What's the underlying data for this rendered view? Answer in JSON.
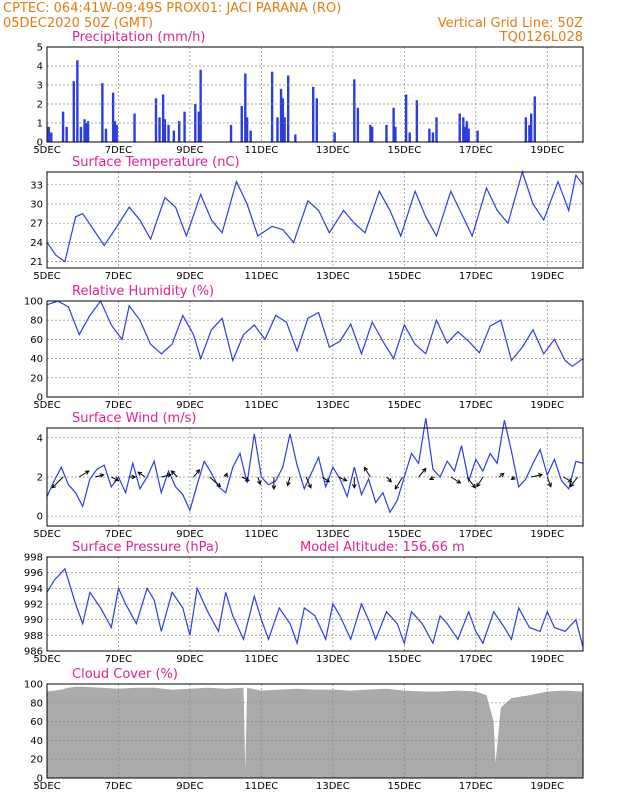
{
  "header": {
    "line1_left": "CPTEC:    064:41W-09:49S    PROX01: JACI PARANA (RO)",
    "line2_left": "05DEC2020 50Z (GMT)",
    "line2_right": "Vertical Grid Line: 50Z",
    "line3_right": "TQ0126L028"
  },
  "colors": {
    "header": "#e87b10",
    "title": "#e0209a",
    "series": "#2a3de0",
    "cloud": "#aaaaaa",
    "grid": "#888888"
  },
  "x_axis": {
    "domain_days": [
      5,
      20
    ],
    "tick_days": [
      5,
      7,
      9,
      11,
      13,
      15,
      17,
      19
    ],
    "tick_labels": [
      "5DEC",
      "7DEC",
      "9DEC",
      "11DEC",
      "13DEC",
      "15DEC",
      "17DEC",
      "19DEC"
    ]
  },
  "chart_data": [
    {
      "type": "bar",
      "title": "Precipitation (mm/h)",
      "ylim": [
        0,
        5
      ],
      "yticks": [
        0,
        1,
        2,
        3,
        4,
        5
      ],
      "series": [
        {
          "x": [
            5.05,
            5.12,
            5.45,
            5.55,
            5.75,
            5.85,
            5.95,
            6.05,
            6.1,
            6.15,
            6.55,
            6.65,
            6.85,
            6.9,
            6.95,
            7.45,
            8.05,
            8.15,
            8.25,
            8.3,
            8.4,
            8.55,
            8.7,
            8.85,
            9.15,
            9.25,
            9.3,
            10.15,
            10.45,
            10.55,
            10.6,
            10.7,
            11.3,
            11.45,
            11.55,
            11.6,
            11.65,
            11.75,
            11.95,
            12.45,
            12.55,
            13.05,
            13.6,
            13.7,
            14.05,
            14.1,
            14.5,
            14.7,
            14.75,
            15.05,
            15.15,
            15.35,
            15.7,
            15.8,
            15.9,
            16.55,
            16.65,
            16.7,
            16.75,
            16.8,
            17.05,
            18.4,
            18.5,
            18.55,
            18.65
          ],
          "values": [
            0.8,
            0.5,
            1.6,
            0.8,
            3.2,
            4.3,
            0.8,
            1.2,
            1.0,
            1.1,
            3.1,
            0.7,
            2.6,
            1.1,
            0.9,
            1.5,
            2.3,
            1.3,
            2.5,
            1.2,
            0.9,
            0.6,
            1.1,
            1.6,
            2.0,
            1.6,
            3.8,
            0.9,
            1.9,
            3.6,
            1.3,
            0.6,
            3.7,
            1.3,
            2.8,
            2.3,
            1.3,
            3.5,
            0.4,
            2.9,
            2.3,
            0.5,
            3.3,
            1.8,
            0.9,
            0.8,
            0.9,
            1.8,
            0.8,
            2.5,
            0.5,
            2.2,
            0.7,
            0.5,
            1.3,
            1.5,
            1.3,
            0.8,
            1.1,
            0.7,
            0.6,
            1.3,
            0.9,
            1.5,
            2.4
          ]
        }
      ]
    },
    {
      "type": "line",
      "title": "Surface Temperature (nC)",
      "ylim": [
        20,
        35
      ],
      "yticks": [
        21,
        24,
        27,
        30,
        33
      ],
      "series": [
        {
          "x": [
            5.0,
            5.25,
            5.5,
            5.8,
            6.0,
            6.3,
            6.6,
            6.9,
            7.3,
            7.6,
            7.9,
            8.3,
            8.6,
            8.9,
            9.3,
            9.6,
            9.9,
            10.3,
            10.6,
            10.9,
            11.3,
            11.6,
            11.9,
            12.3,
            12.6,
            12.9,
            13.3,
            13.6,
            13.9,
            14.3,
            14.6,
            14.9,
            15.3,
            15.6,
            15.9,
            16.3,
            16.6,
            16.9,
            17.3,
            17.6,
            17.9,
            18.3,
            18.6,
            18.9,
            19.3,
            19.6,
            19.8,
            20.0
          ],
          "values": [
            24.0,
            22.0,
            21.0,
            28.0,
            28.5,
            26.0,
            23.5,
            26.0,
            29.5,
            27.5,
            24.5,
            31.0,
            29.5,
            25.0,
            31.5,
            27.5,
            25.5,
            33.5,
            30.0,
            25.0,
            26.5,
            26.0,
            24.0,
            30.5,
            29.0,
            25.5,
            29.0,
            27.0,
            25.5,
            32.0,
            29.0,
            25.0,
            32.0,
            28.0,
            25.0,
            32.0,
            28.5,
            25.0,
            32.5,
            29.0,
            27.0,
            35.0,
            30.0,
            27.5,
            33.5,
            29.0,
            34.5,
            33.0
          ]
        }
      ]
    },
    {
      "type": "line",
      "title": "Relative Humidity (%)",
      "ylim": [
        0,
        100
      ],
      "yticks": [
        0,
        20,
        40,
        60,
        80,
        100
      ],
      "series": [
        {
          "x": [
            5.0,
            5.3,
            5.6,
            5.9,
            6.2,
            6.5,
            6.8,
            7.1,
            7.3,
            7.6,
            7.9,
            8.2,
            8.5,
            8.8,
            9.1,
            9.3,
            9.6,
            9.9,
            10.2,
            10.5,
            10.8,
            11.1,
            11.4,
            11.7,
            12.0,
            12.3,
            12.6,
            12.9,
            13.2,
            13.5,
            13.8,
            14.1,
            14.4,
            14.7,
            15.0,
            15.3,
            15.6,
            15.9,
            16.2,
            16.5,
            16.8,
            17.1,
            17.4,
            17.7,
            18.0,
            18.3,
            18.6,
            18.9,
            19.2,
            19.5,
            19.7,
            20.0
          ],
          "values": [
            96,
            100,
            94,
            65,
            85,
            100,
            75,
            60,
            95,
            80,
            55,
            45,
            55,
            85,
            65,
            40,
            70,
            82,
            38,
            65,
            75,
            60,
            85,
            78,
            48,
            82,
            88,
            52,
            58,
            76,
            45,
            78,
            58,
            40,
            75,
            55,
            45,
            80,
            56,
            68,
            58,
            46,
            74,
            80,
            38,
            52,
            70,
            45,
            60,
            38,
            32,
            40
          ]
        }
      ]
    },
    {
      "type": "line",
      "title": "Surface Wind (m/s)",
      "ylim": [
        -0.5,
        4.5
      ],
      "yticks": [
        0,
        2,
        4
      ],
      "series": [
        {
          "x": [
            5.0,
            5.2,
            5.4,
            5.6,
            5.8,
            6.0,
            6.2,
            6.4,
            6.6,
            6.8,
            7.0,
            7.2,
            7.4,
            7.6,
            7.8,
            8.0,
            8.2,
            8.4,
            8.6,
            8.8,
            9.0,
            9.2,
            9.4,
            9.6,
            9.8,
            10.0,
            10.2,
            10.4,
            10.6,
            10.8,
            11.0,
            11.2,
            11.4,
            11.6,
            11.8,
            12.0,
            12.2,
            12.4,
            12.6,
            12.8,
            13.0,
            13.2,
            13.4,
            13.6,
            13.8,
            14.0,
            14.2,
            14.4,
            14.6,
            14.8,
            15.0,
            15.2,
            15.4,
            15.6,
            15.8,
            16.0,
            16.2,
            16.4,
            16.6,
            16.8,
            17.0,
            17.2,
            17.4,
            17.6,
            17.8,
            18.0,
            18.2,
            18.4,
            18.6,
            18.8,
            19.0,
            19.2,
            19.4,
            19.6,
            19.8,
            20.0
          ],
          "values": [
            1.0,
            1.8,
            2.5,
            1.6,
            1.2,
            0.5,
            1.9,
            2.4,
            2.6,
            1.5,
            2.0,
            1.2,
            2.7,
            1.4,
            2.0,
            2.8,
            1.2,
            2.3,
            1.5,
            1.1,
            0.3,
            1.6,
            2.8,
            2.2,
            1.5,
            1.2,
            2.5,
            3.2,
            1.7,
            4.2,
            2.0,
            1.6,
            1.8,
            2.5,
            4.2,
            2.6,
            1.4,
            2.2,
            3.0,
            1.5,
            2.5,
            1.9,
            1.0,
            2.5,
            1.1,
            1.9,
            0.7,
            1.2,
            0.2,
            0.8,
            2.0,
            3.2,
            2.7,
            5.0,
            2.4,
            2.0,
            2.8,
            2.3,
            3.6,
            1.8,
            2.9,
            2.3,
            3.2,
            2.7,
            4.9,
            3.3,
            1.5,
            1.9,
            2.7,
            3.4,
            2.1,
            2.9,
            1.8,
            1.4,
            2.8,
            2.7
          ]
        }
      ],
      "vectors": {
        "x": [
          5.45,
          5.9,
          6.35,
          6.8,
          7.3,
          7.75,
          8.2,
          8.65,
          9.1,
          9.55,
          10.0,
          10.45,
          10.9,
          11.35,
          11.8,
          12.25,
          12.7,
          13.15,
          13.6,
          14.05,
          14.5,
          14.95,
          15.4,
          15.85,
          16.3,
          16.75,
          17.2,
          17.65,
          18.1,
          18.55,
          19.0,
          19.45,
          19.85
        ],
        "u": [
          -0.9,
          0.8,
          0.7,
          0.6,
          0.5,
          -0.6,
          0.8,
          -0.5,
          0.5,
          0.9,
          0.1,
          0.6,
          0.2,
          0.0,
          -0.2,
          0.4,
          0.6,
          0.7,
          0.0,
          -0.5,
          0.4,
          -0.6,
          0.6,
          -0.4,
          0.8,
          0.7,
          -0.5,
          0.4,
          -0.3,
          0.9,
          0.3,
          0.7,
          -0.6
        ],
        "v": [
          -0.9,
          0.5,
          0.2,
          -0.3,
          0.0,
          0.4,
          0.2,
          0.5,
          0.6,
          -0.8,
          0.3,
          -0.3,
          -0.6,
          -1.0,
          -0.7,
          -0.9,
          -0.4,
          -0.3,
          -0.9,
          0.8,
          -0.4,
          -1.0,
          0.7,
          -0.2,
          -0.5,
          -0.9,
          -0.8,
          0.3,
          -0.2,
          0.2,
          -0.8,
          -0.4,
          -0.8
        ]
      }
    },
    {
      "type": "line",
      "title": "Surface Pressure (hPa)",
      "subtitle": "Model Altitude: 156.66 m",
      "ylim": [
        986,
        998
      ],
      "yticks": [
        986,
        988,
        990,
        992,
        994,
        996,
        998
      ],
      "series": [
        {
          "x": [
            5.0,
            5.2,
            5.5,
            5.8,
            6.0,
            6.2,
            6.5,
            6.8,
            7.0,
            7.2,
            7.5,
            7.8,
            8.0,
            8.2,
            8.5,
            8.8,
            9.0,
            9.2,
            9.5,
            9.8,
            10.0,
            10.2,
            10.5,
            10.8,
            11.0,
            11.2,
            11.5,
            11.8,
            12.0,
            12.2,
            12.5,
            12.8,
            13.0,
            13.2,
            13.5,
            13.8,
            14.0,
            14.2,
            14.5,
            14.8,
            15.0,
            15.2,
            15.5,
            15.8,
            16.0,
            16.2,
            16.5,
            16.8,
            17.0,
            17.2,
            17.5,
            17.8,
            18.0,
            18.2,
            18.5,
            18.8,
            19.0,
            19.2,
            19.5,
            19.8,
            20.0
          ],
          "values": [
            993.5,
            995.0,
            996.5,
            992.0,
            989.5,
            993.5,
            991.5,
            989.0,
            994.0,
            992.0,
            989.5,
            994.0,
            992.5,
            988.5,
            993.5,
            991.5,
            988.0,
            994.0,
            991.0,
            988.5,
            993.5,
            990.5,
            987.5,
            993.0,
            990.0,
            987.5,
            991.5,
            989.5,
            987.0,
            991.5,
            990.5,
            987.5,
            992.0,
            990.5,
            987.5,
            992.0,
            990.0,
            987.5,
            991.0,
            989.5,
            987.0,
            991.0,
            989.5,
            987.0,
            990.5,
            989.5,
            987.5,
            991.0,
            988.5,
            987.0,
            991.0,
            989.0,
            987.5,
            991.5,
            989.0,
            988.5,
            991.0,
            989.0,
            988.5,
            990.0,
            986.5
          ]
        }
      ]
    },
    {
      "type": "area",
      "title": "Cloud Cover (%)",
      "ylim": [
        0,
        100
      ],
      "yticks": [
        0,
        20,
        40,
        60,
        80,
        100
      ],
      "series": [
        {
          "x": [
            5.0,
            5.2,
            5.4,
            5.6,
            5.8,
            6.0,
            6.5,
            7.0,
            7.5,
            8.0,
            8.5,
            9.0,
            9.5,
            10.0,
            10.5,
            10.55,
            10.6,
            11.0,
            11.5,
            12.0,
            12.5,
            13.0,
            13.5,
            14.0,
            14.5,
            15.0,
            15.5,
            16.0,
            16.5,
            17.0,
            17.3,
            17.5,
            17.55,
            17.7,
            18.0,
            18.5,
            19.0,
            19.5,
            20.0
          ],
          "values": [
            92,
            93,
            94,
            96,
            97,
            97,
            96,
            95,
            96,
            96,
            94,
            95,
            96,
            95,
            96,
            8,
            96,
            93,
            94,
            95,
            94,
            94,
            93,
            94,
            95,
            93,
            92,
            92,
            93,
            92,
            88,
            60,
            15,
            75,
            85,
            88,
            92,
            93,
            92
          ]
        }
      ]
    }
  ]
}
